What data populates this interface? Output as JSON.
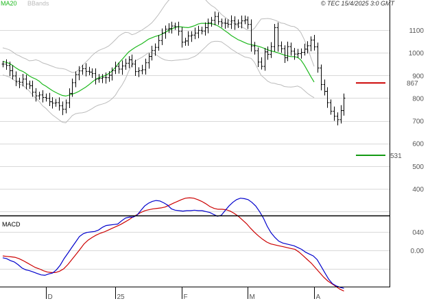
{
  "header": {
    "legend_ma": "MA20",
    "legend_bb": "BBands",
    "copyright": "© TEC 15/4/2025 3:0 GMT"
  },
  "colors": {
    "ma": "#1cb81c",
    "bbands": "#bbbbbb",
    "price_bars": "#000000",
    "grid": "#d8d8d8",
    "resistance": "#cc0000",
    "support": "#119911",
    "macd_line": "#0000cc",
    "signal_line": "#cc0000",
    "grey_text": "#999999"
  },
  "chart_data": [
    {
      "type": "ohlc",
      "panel": "price",
      "y_ticks": [
        400,
        500,
        600,
        700,
        800,
        900,
        1000,
        1100
      ],
      "ylim": [
        270,
        1240
      ],
      "x_tick_labels": [
        "D",
        "25",
        "F",
        "M",
        "A"
      ],
      "x_tick_bars": [
        13,
        34,
        54,
        74,
        94
      ],
      "num_bars": 104,
      "close": [
        950,
        944,
        921,
        898,
        874,
        870,
        884,
        862,
        855,
        826,
        810,
        814,
        803,
        799,
        784,
        778,
        780,
        766,
        751,
        779,
        821,
        868,
        904,
        920,
        930,
        918,
        915,
        908,
        884,
        887,
        891,
        890,
        901,
        921,
        940,
        928,
        942,
        954,
        969,
        950,
        917,
        921,
        925,
        956,
        984,
        1010,
        1024,
        1054,
        1087,
        1104,
        1107,
        1118,
        1115,
        1095,
        1047,
        1052,
        1074,
        1078,
        1087,
        1099,
        1096,
        1111,
        1132,
        1143,
        1160,
        1137,
        1131,
        1130,
        1126,
        1141,
        1127,
        1131,
        1141,
        1145,
        1125,
        1030,
        1009,
        959,
        940,
        1004,
        993,
        1027,
        1111,
        1031,
        1018,
        978,
        1027,
        1007,
        994,
        996,
        1002,
        1016,
        1031,
        1056,
        1026,
        933,
        860,
        830,
        780,
        742,
        720,
        705,
        745,
        800
      ],
      "series": [
        {
          "name": "MA20",
          "values": [
            962,
            958,
            953,
            944,
            933,
            924,
            918,
            909,
            898,
            890,
            884,
            875,
            861,
            853,
            843,
            833,
            825,
            818,
            812,
            809,
            813,
            818,
            823,
            830,
            839,
            848,
            859,
            871,
            882,
            890,
            895,
            900,
            908,
            920,
            935,
            955,
            970,
            987,
            1003,
            1014,
            1024,
            1032,
            1040,
            1050,
            1060,
            1066,
            1072,
            1076,
            1082,
            1090,
            1098,
            1105,
            1112,
            1115,
            1114,
            1112,
            1111,
            1115,
            1120,
            1127,
            1130,
            1130,
            1129,
            1128,
            1125,
            1118,
            1109,
            1098,
            1088,
            1076,
            1067,
            1058,
            1052,
            1045,
            1039,
            1036,
            1033,
            1029,
            1025,
            1019,
            1013,
            1008,
            1005,
            1000,
            995,
            990,
            986,
            983,
            983,
            980,
            968,
            947,
            921,
            895,
            871
          ]
        }
      ],
      "resistance": {
        "value": 867,
        "label": "867"
      },
      "support": {
        "value": 531,
        "label": "531"
      }
    },
    {
      "type": "line",
      "panel": "macd",
      "title": "MACD",
      "y_ticks": [
        0,
        40
      ],
      "y_tick_labels": [
        "0.00",
        "040"
      ],
      "series": [
        {
          "name": "MACD",
          "values": [
            -16,
            -18,
            -22,
            -25,
            -31,
            -38,
            -42,
            -44,
            -47,
            -50,
            -53,
            -54,
            -51,
            -49,
            -42,
            -32,
            -18,
            -6,
            6,
            18,
            30,
            36,
            39,
            40,
            41,
            44,
            50,
            54,
            55,
            56,
            57,
            64,
            70,
            72,
            72,
            76,
            86,
            96,
            102,
            106,
            108,
            107,
            103,
            98,
            90,
            87,
            86,
            85,
            86,
            86,
            87,
            86,
            86,
            84,
            82,
            78,
            74,
            76,
            86,
            96,
            104,
            110,
            113,
            112,
            110,
            104,
            96,
            84,
            70,
            52,
            38,
            28,
            20,
            16,
            14,
            12,
            10,
            6,
            2,
            -4,
            -8,
            -12,
            -20,
            -34,
            -48,
            -62,
            -72,
            -77,
            -80,
            -82
          ]
        },
        {
          "name": "Signal",
          "values": [
            -12,
            -13,
            -14,
            -15,
            -18,
            -22,
            -27,
            -32,
            -37,
            -40,
            -44,
            -47,
            -48,
            -48,
            -45,
            -40,
            -31,
            -20,
            -9,
            2,
            14,
            22,
            28,
            33,
            37,
            40,
            44,
            48,
            52,
            56,
            61,
            66,
            72,
            77,
            82,
            86,
            88,
            90,
            91,
            92,
            94,
            98,
            102,
            106,
            110,
            113,
            114,
            113,
            110,
            106,
            101,
            95,
            91,
            89,
            89,
            88,
            85,
            80,
            74,
            66,
            58,
            48,
            39,
            31,
            24,
            18,
            14,
            12,
            10,
            8,
            6,
            4,
            2,
            -4,
            -12,
            -20,
            -28,
            -38,
            -48,
            -58,
            -66,
            -72,
            -78,
            -84,
            -88
          ]
        }
      ]
    }
  ]
}
